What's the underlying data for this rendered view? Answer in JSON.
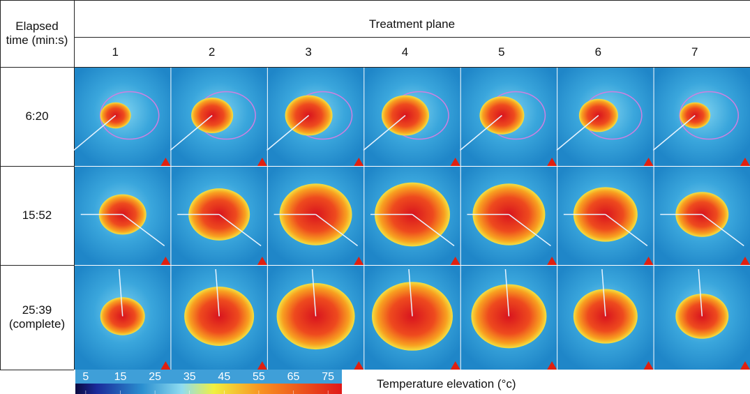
{
  "header": {
    "row_label": "Elapsed time (min:s)",
    "column_group": "Treatment plane",
    "planes": [
      1,
      2,
      3,
      4,
      5,
      6,
      7
    ]
  },
  "rows": [
    "6:20",
    "15:52",
    "25:39 (complete)"
  ],
  "colorbar": {
    "lim": [
      2,
      79
    ],
    "ticks": [
      5,
      15,
      25,
      35,
      45,
      55,
      65,
      75
    ],
    "label": "Temperature elevation (°c)"
  }
}
